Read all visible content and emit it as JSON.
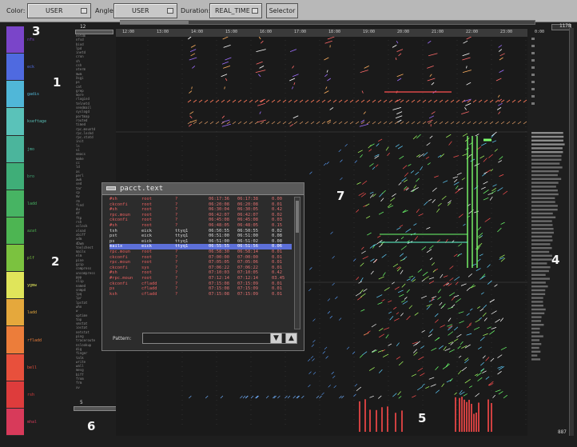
{
  "toolbar": {
    "color_label": "Color:",
    "color_value": "USER",
    "angle_label": "Angle:",
    "angle_value": "USER",
    "duration_label": "Duration:",
    "duration_value": "REAL_TIME",
    "selector_button": "Selector"
  },
  "top_right_number": "1178",
  "bottom_right_number": "887",
  "top_left_number": "12",
  "bottom_left_number": "5",
  "callouts": [
    "1",
    "2",
    "3",
    "4",
    "5",
    "6",
    "7"
  ],
  "users": [
    "nfs",
    "eck",
    "gadis",
    "kseftage",
    "jmo",
    "bro",
    "ladd",
    "azat",
    "plf",
    "ygmw",
    "ladd",
    "rfladd",
    "bell",
    "rsh",
    "mhal"
  ],
  "user_colors": [
    "#7a45c9",
    "#4f6ae0",
    "#50b7d8",
    "#5ac2b9",
    "#4bb59c",
    "#3fae78",
    "#47b463",
    "#4db552",
    "#7bc23f",
    "#e0e55a",
    "#e5a83c",
    "#ec7d3a",
    "#e8503c",
    "#de3c3c",
    "#d83a5a"
  ],
  "time_ticks": [
    "12:00",
    "13:00",
    "14:00",
    "15:00",
    "16:00",
    "17:00",
    "18:00",
    "19:00",
    "20:00",
    "21:00",
    "22:00",
    "23:00",
    "0:00"
  ],
  "processes": [
    "netdm",
    "nfsd",
    "biod",
    "lpd",
    "inetd",
    "cron",
    "sh",
    "csh",
    "xterm",
    "mwm",
    "Xsgi",
    "ps",
    "cat",
    "grep",
    "more",
    "rlogind",
    "telnetd",
    "sendmail",
    "syslogd",
    "portmap",
    "routed",
    "timed",
    "rpc.mountd",
    "rpc.lockd",
    "rpc.statd",
    "init",
    "ls",
    "vi",
    "emacs",
    "make",
    "cc",
    "ld",
    "as",
    "perl",
    "awk",
    "sed",
    "tar",
    "cp",
    "mv",
    "rm",
    "find",
    "du",
    "df",
    "ftp",
    "rsh",
    "xclock",
    "xload",
    "xbiff",
    "xdm",
    "4Dwm",
    "toolchest",
    "mailx",
    "elm",
    "pine",
    "gzip",
    "compress",
    "uncompress",
    "ppp",
    "slip",
    "named",
    "snmpd",
    "lpq",
    "lpr",
    "lpstat",
    "who",
    "w",
    "uptime",
    "top",
    "vmstat",
    "iostat",
    "netstat",
    "ping",
    "traceroute",
    "nslookup",
    "dig",
    "finger",
    "talk",
    "write",
    "wall",
    "mesg",
    "biff",
    "from",
    "frm",
    "xv",
    "gimp",
    "tcsh",
    "ksh",
    "bash",
    "zsh"
  ],
  "pacct_window": {
    "title": "pacct.text",
    "pattern_label": "Pattern:",
    "pattern_value": "",
    "rows": [
      [
        "#sh",
        "root",
        "?",
        "06:17:36",
        "06:17:38",
        "0.00"
      ],
      [
        "ckconfi",
        "root",
        "?",
        "06:20:08",
        "06:20:08",
        "0.01"
      ],
      [
        "#sh",
        "root",
        "?",
        "06:30:04",
        "06:30:05",
        "0.42"
      ],
      [
        "rpc.moun",
        "root",
        "?",
        "06:42:07",
        "06:42:07",
        "0.02"
      ],
      [
        "ckconfi",
        "root",
        "?",
        "06:45:08",
        "06:45:08",
        "0.03"
      ],
      [
        "#sh",
        "root",
        "?",
        "06:48:05",
        "06:48:05",
        "0.15"
      ],
      [
        "tsh",
        "eick",
        "ttyq1",
        "06:50:55",
        "06:50:55",
        "0.02"
      ],
      [
        "pst",
        "eick",
        "ttyq1",
        "06:51:00",
        "06:51:00",
        "0.08"
      ],
      [
        "ps",
        "eick",
        "ttyq1",
        "06:51:00",
        "06:51:02",
        "0.08"
      ],
      [
        "mailx",
        "eick",
        "ttyq1",
        "06:55:55",
        "06:51:56",
        "0.06"
      ],
      [
        "rpc.moun",
        "root",
        "?",
        "06:58:30",
        "06:58:14",
        "0.01"
      ],
      [
        "ckconfi",
        "root",
        "?",
        "07:00:00",
        "07:00:00",
        "0.01"
      ],
      [
        "rpc.moun",
        "root",
        "?",
        "07:05:05",
        "07:05:06",
        "0.01"
      ],
      [
        "ckconfi",
        "sys",
        "?",
        "07:06:22",
        "07:06:22",
        "0.01"
      ],
      [
        "#sh",
        "root",
        "?",
        "07:10:03",
        "07:10:05",
        "0.42"
      ],
      [
        "#rpc.moun",
        "root",
        "?",
        "07:12:14",
        "07:12:14",
        "03.45"
      ],
      [
        "ckconfi",
        "cfladd",
        "?",
        "07:15:08",
        "07:15:09",
        "0.01"
      ],
      [
        "ps",
        "cfladd",
        "?",
        "07:15:08",
        "07:15:09",
        "0.01"
      ],
      [
        "ksh",
        "cfladd",
        "?",
        "07:15:08",
        "07:15:09",
        "0.01"
      ]
    ],
    "selected_row": 9
  }
}
